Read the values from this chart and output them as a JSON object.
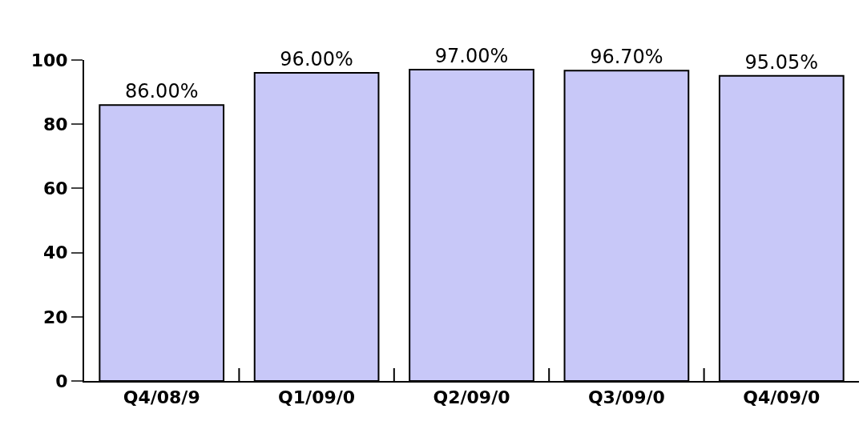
{
  "chart_data": {
    "type": "bar",
    "categories": [
      "Q4/08/9",
      "Q1/09/0",
      "Q2/09/0",
      "Q3/09/0",
      "Q4/09/0"
    ],
    "values": [
      86,
      96,
      97,
      96.7,
      95.05
    ],
    "value_labels": [
      "86.00%",
      "96.00%",
      "97.00%",
      "96.70%",
      "95.05%"
    ],
    "color": "#c8c8f8",
    "ylim": [
      0,
      100
    ],
    "yticks": [
      0,
      20,
      40,
      60,
      80,
      100
    ]
  }
}
